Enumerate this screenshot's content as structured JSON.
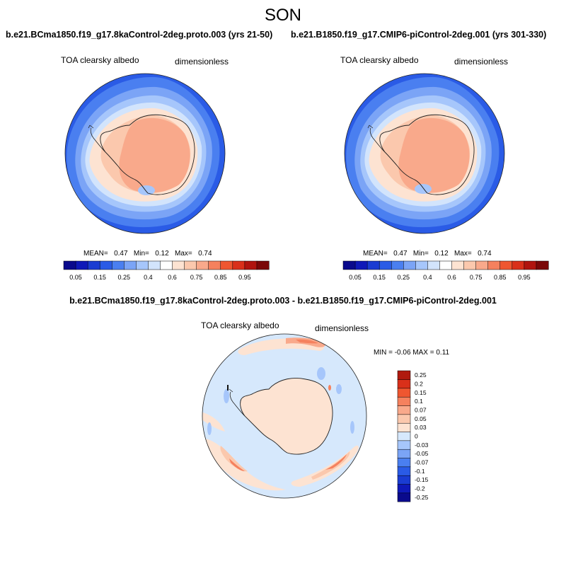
{
  "figure": {
    "season": "SON",
    "panels": [
      {
        "title": "b.e21.BCma1850.f19_g17.8kaControl-2deg.proto.003 (yrs 21-50)",
        "variable": "TOA clearsky albedo",
        "units": "dimensionless",
        "stats": {
          "mean_label": "MEAN=",
          "mean": "0.47",
          "min_label": "Min=",
          "min": "0.12",
          "max_label": "Max=",
          "max": "0.74"
        }
      },
      {
        "title": "b.e21.B1850.f19_g17.CMIP6-piControl-2deg.001 (yrs 301-330)",
        "variable": "TOA clearsky albedo",
        "units": "dimensionless",
        "stats": {
          "mean_label": "MEAN=",
          "mean": "0.47",
          "min_label": "Min=",
          "min": "0.12",
          "max_label": "Max=",
          "max": "0.74"
        }
      }
    ],
    "difference": {
      "title": "b.e21.BCma1850.f19_g17.8kaControl-2deg.proto.003 - b.e21.B1850.f19_g17.CMIP6-piControl-2deg.001",
      "variable": "TOA clearsky albedo",
      "units": "dimensionless",
      "stats": "MIN =  -0.06 MAX =   0.11"
    }
  },
  "colorbars": {
    "absolute": {
      "colors": [
        "#0a0a8c",
        "#0f19b8",
        "#1a3cd2",
        "#2a5be6",
        "#4a7ff0",
        "#7ba4f6",
        "#a6c6fb",
        "#d2e4fc",
        "#ffffff",
        "#fde3d2",
        "#fbc8ad",
        "#f9a98b",
        "#f5815e",
        "#ef5630",
        "#d9301a",
        "#b0140e",
        "#7a0808"
      ],
      "labels": [
        "0.05",
        "0.15",
        "0.25",
        "0.4",
        "0.6",
        "0.75",
        "0.85",
        "0.95"
      ]
    },
    "difference": {
      "colors": [
        "#0a0a8c",
        "#0f19b8",
        "#1a3cd2",
        "#2a5be6",
        "#4a7ff0",
        "#7ba4f6",
        "#a6c6fb",
        "#d6e8fc",
        "#fde3d2",
        "#fbc8ad",
        "#f9a98b",
        "#f5815e",
        "#ef5630",
        "#d9301a",
        "#b01a0e"
      ],
      "labels": [
        "0.25",
        "0.2",
        "0.15",
        "0.1",
        "0.07",
        "0.05",
        "0.03",
        "0",
        "-0.03",
        "-0.05",
        "-0.07",
        "-0.1",
        "-0.15",
        "-0.2",
        "-0.25"
      ]
    }
  }
}
